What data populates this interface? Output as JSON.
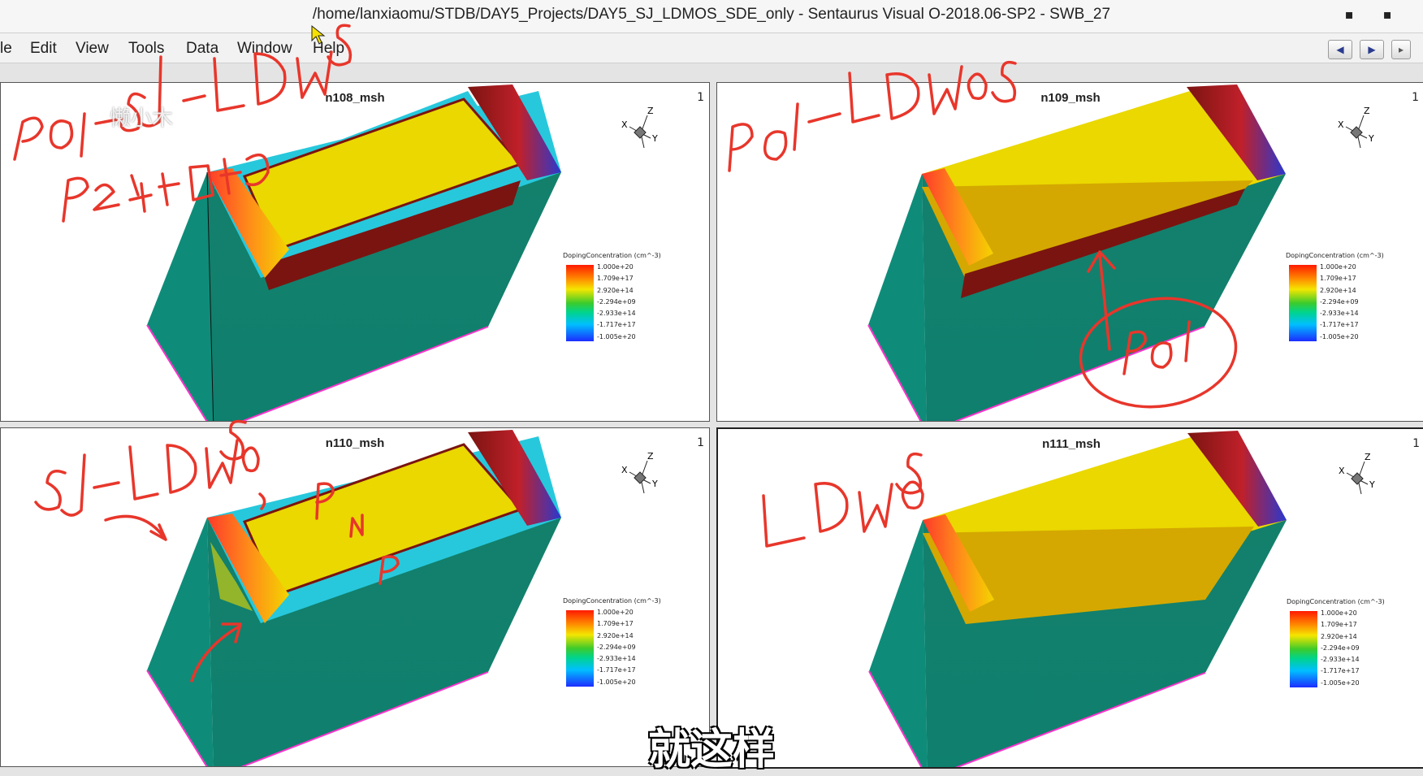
{
  "window": {
    "title": "/home/lanxiaomu/STDB/DAY5_Projects/DAY5_SJ_LDMOS_SDE_only - Sentaurus Visual O-2018.06-SP2 - SWB_27",
    "minimize": "▪",
    "close": "▪"
  },
  "menu": [
    "le",
    "Edit",
    "View",
    "Tools",
    "Data",
    "Window",
    "Help"
  ],
  "nav": {
    "back": "◀",
    "forward": "▶"
  },
  "panels": [
    {
      "title": "n108_msh",
      "num": "1",
      "annotation": "PO1-SJ-LDMOS / P2注入区域"
    },
    {
      "title": "n109_msh",
      "num": "1",
      "annotation": "POI-LDMOS / POI"
    },
    {
      "title": "n110_msh",
      "num": "1",
      "annotation": "SJ-LDMOS / P N P"
    },
    {
      "title": "n111_msh",
      "num": "1",
      "annotation": "LDMOS"
    }
  ],
  "axis_labels": {
    "z": "Z",
    "x": "X",
    "y": "Y"
  },
  "legend": {
    "title": "DopingConcentration (cm^-3)",
    "labels": [
      "1.000e+20",
      "1.709e+17",
      "2.920e+14",
      "-2.294e+09",
      "-2.933e+14",
      "-1.717e+17",
      "-1.005e+20"
    ]
  },
  "watermark": "懒小木",
  "subtitle": "就这样",
  "colors": {
    "yellow": "#ead800",
    "teal": "#0e8c79",
    "cyan": "#27c8dc",
    "maroon": "#7a1410",
    "magenta": "#ff33cc",
    "ink": "#e8362b"
  }
}
